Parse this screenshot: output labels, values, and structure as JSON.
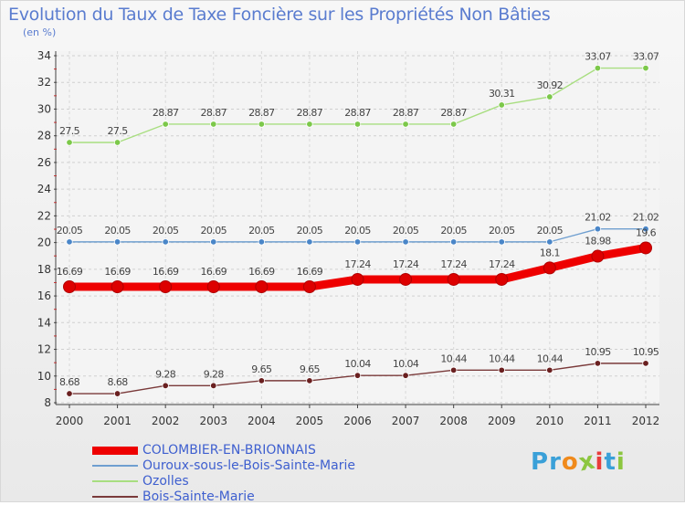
{
  "header": {
    "title": "Evolution du Taux de Taxe Foncière sur les Propriétés Non Bâties",
    "subtitle": "(en %)"
  },
  "logo": {
    "letters": [
      "P",
      "r",
      "o",
      "x",
      "i",
      "t",
      "i"
    ],
    "colors": [
      "#3aa0d8",
      "#3aa0d8",
      "#f08a1c",
      "#8cc63f",
      "#e83c3c",
      "#3aa0d8",
      "#8cc63f"
    ]
  },
  "chart_data": {
    "type": "line",
    "title": "Evolution du Taux de Taxe Foncière sur les Propriétés Non Bâties",
    "ylabel": "(en %)",
    "xlabel": "",
    "categories": [
      "2000",
      "2001",
      "2002",
      "2003",
      "2004",
      "2005",
      "2006",
      "2007",
      "2008",
      "2009",
      "2010",
      "2011",
      "2012"
    ],
    "ylim": [
      8,
      34
    ],
    "yticks": [
      8,
      10,
      12,
      14,
      16,
      18,
      20,
      22,
      24,
      26,
      28,
      30,
      32,
      34
    ],
    "grid": true,
    "legend_position": "bottom-left",
    "series": [
      {
        "name": "COLOMBIER-EN-BRIONNAIS",
        "color": "#ee0000",
        "marker": "#dd0000",
        "emphasis": true,
        "values": [
          16.69,
          16.69,
          16.69,
          16.69,
          16.69,
          16.69,
          17.24,
          17.24,
          17.24,
          17.24,
          18.1,
          18.98,
          19.6
        ],
        "labels": [
          "16.69",
          "16.69",
          "16.69",
          "16.69",
          "16.69",
          "16.69",
          "17.24",
          "17.24",
          "17.24",
          "17.24",
          "18.1",
          "18.98",
          "19.6"
        ]
      },
      {
        "name": "Ouroux-sous-le-Bois-Sainte-Marie",
        "color": "#6f9fd0",
        "marker": "#4a86c8",
        "emphasis": false,
        "values": [
          20.05,
          20.05,
          20.05,
          20.05,
          20.05,
          20.05,
          20.05,
          20.05,
          20.05,
          20.05,
          20.05,
          21.02,
          21.02
        ],
        "labels": [
          "20.05",
          "20.05",
          "20.05",
          "20.05",
          "20.05",
          "20.05",
          "20.05",
          "20.05",
          "20.05",
          "20.05",
          "20.05",
          "21.02",
          "21.02"
        ]
      },
      {
        "name": "Ozolles",
        "color": "#a8de80",
        "marker": "#7cc84a",
        "emphasis": false,
        "values": [
          27.5,
          27.5,
          28.87,
          28.87,
          28.87,
          28.87,
          28.87,
          28.87,
          28.87,
          30.31,
          30.92,
          33.07,
          33.07
        ],
        "labels": [
          "27.5",
          "27.5",
          "28.87",
          "28.87",
          "28.87",
          "28.87",
          "28.87",
          "28.87",
          "28.87",
          "30.31",
          "30.92",
          "33.07",
          "33.07"
        ]
      },
      {
        "name": "Bois-Sainte-Marie",
        "color": "#7a3a3a",
        "marker": "#6a2020",
        "emphasis": false,
        "values": [
          8.68,
          8.68,
          9.28,
          9.28,
          9.65,
          9.65,
          10.04,
          10.04,
          10.44,
          10.44,
          10.44,
          10.95,
          10.95
        ],
        "labels": [
          "8.68",
          "8.68",
          "9.28",
          "9.28",
          "9.65",
          "9.65",
          "10.04",
          "10.04",
          "10.44",
          "10.44",
          "10.44",
          "10.95",
          "10.95"
        ]
      }
    ]
  }
}
